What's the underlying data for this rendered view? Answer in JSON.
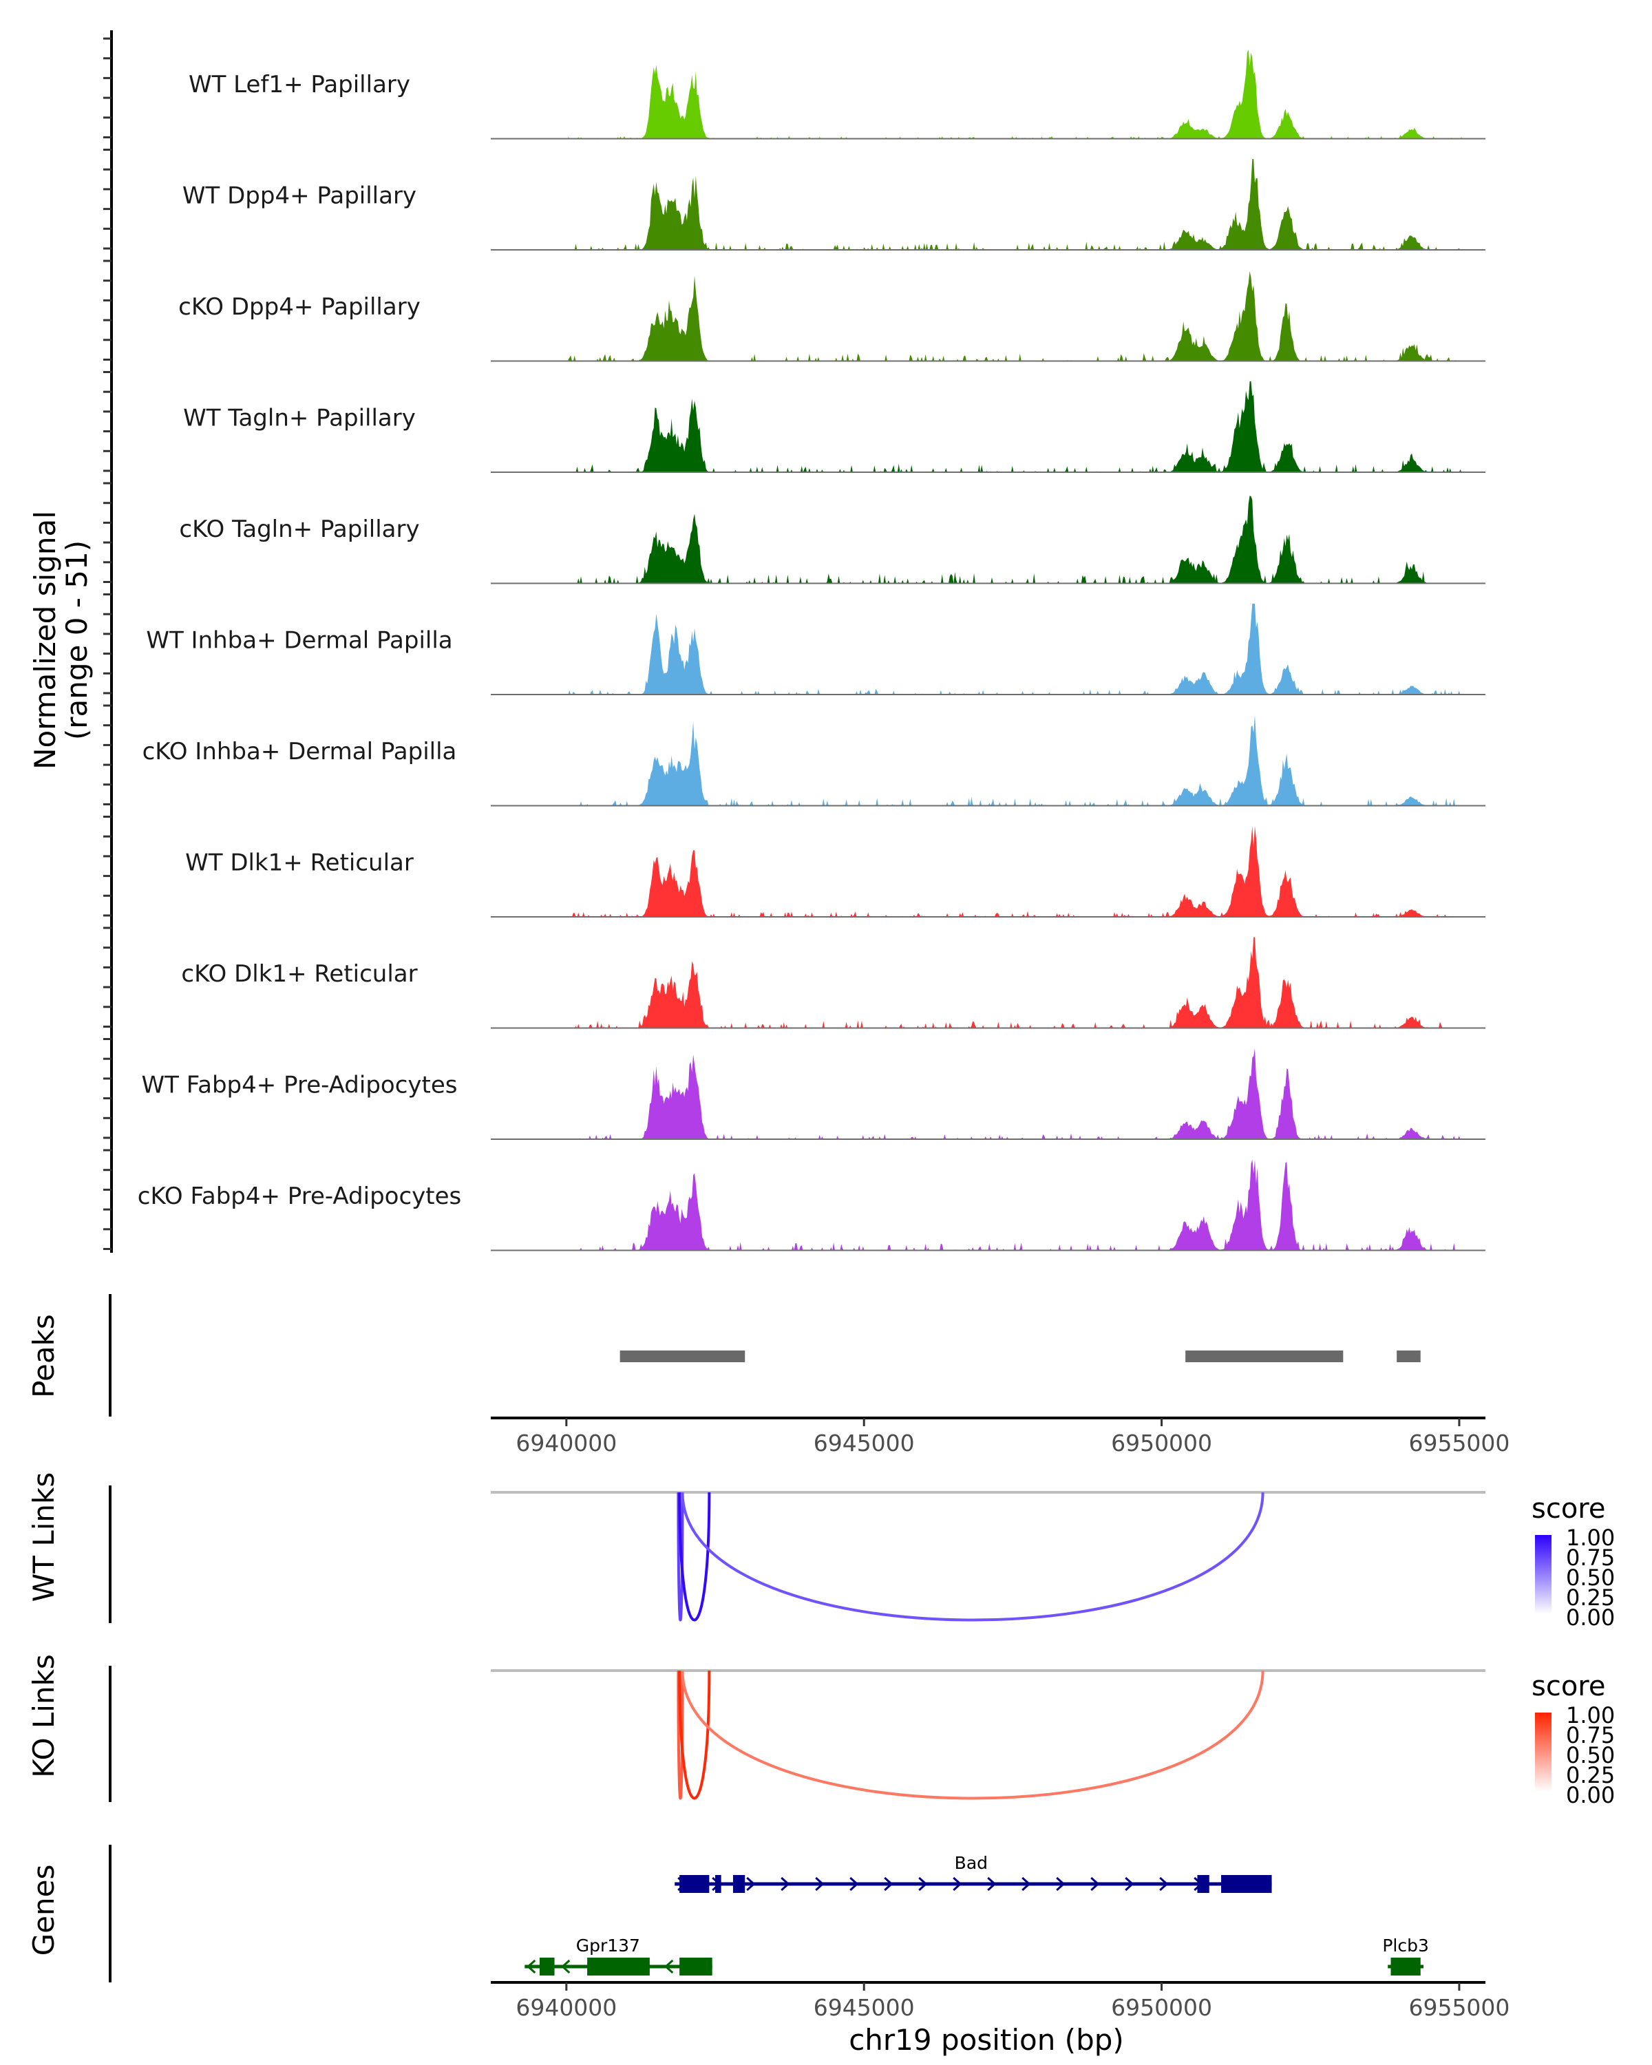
{
  "chart_data": {
    "type": "area",
    "title": "",
    "ylabel_lines": [
      "Normalized signal",
      "(range 0 - 51)"
    ],
    "ylim": [
      0,
      51
    ],
    "xlabel": "chr19 position (bp)",
    "xlim": [
      6938730,
      6955440
    ],
    "x_ticks": [
      6940000,
      6945000,
      6950000,
      6955000
    ],
    "x_tick_labels": [
      "6940000",
      "6945000",
      "6950000",
      "6955000"
    ],
    "coverage_tracks": [
      {
        "name": "WT Lef1+ Papillary",
        "color": "#66cc00",
        "peaks": [
          [
            6941500,
            40
          ],
          [
            6941750,
            29
          ],
          [
            6942150,
            36
          ],
          [
            6941950,
            8
          ],
          [
            6951500,
            51
          ],
          [
            6951300,
            20
          ],
          [
            6952100,
            16
          ],
          [
            6950400,
            10
          ],
          [
            6950700,
            6
          ],
          [
            6954200,
            6
          ]
        ],
        "noise": 1
      },
      {
        "name": "WT Dpp4+ Papillary",
        "color": "#458b00",
        "peaks": [
          [
            6941500,
            38
          ],
          [
            6941750,
            25
          ],
          [
            6941950,
            14
          ],
          [
            6942150,
            36
          ],
          [
            6951550,
            51
          ],
          [
            6951250,
            18
          ],
          [
            6952100,
            24
          ],
          [
            6950400,
            12
          ],
          [
            6950700,
            6
          ],
          [
            6954200,
            8
          ]
        ],
        "noise": 3
      },
      {
        "name": "cKO Dpp4+ Papillary",
        "color": "#458b00",
        "peaks": [
          [
            6941500,
            26
          ],
          [
            6941750,
            26
          ],
          [
            6941950,
            12
          ],
          [
            6942150,
            40
          ],
          [
            6951500,
            45
          ],
          [
            6951300,
            22
          ],
          [
            6952100,
            32
          ],
          [
            6950400,
            20
          ],
          [
            6950700,
            10
          ],
          [
            6954200,
            10
          ]
        ],
        "noise": 3
      },
      {
        "name": "WT Tagln+ Papillary",
        "color": "#006400",
        "peaks": [
          [
            6941500,
            34
          ],
          [
            6941750,
            23
          ],
          [
            6941950,
            10
          ],
          [
            6942150,
            42
          ],
          [
            6951500,
            51
          ],
          [
            6951300,
            30
          ],
          [
            6952100,
            18
          ],
          [
            6950400,
            12
          ],
          [
            6950700,
            10
          ],
          [
            6954200,
            8
          ]
        ],
        "noise": 3
      },
      {
        "name": "cKO Tagln+ Papillary",
        "color": "#006400",
        "peaks": [
          [
            6941500,
            26
          ],
          [
            6941750,
            22
          ],
          [
            6941950,
            10
          ],
          [
            6942150,
            36
          ],
          [
            6951500,
            43
          ],
          [
            6951300,
            24
          ],
          [
            6952100,
            28
          ],
          [
            6950400,
            16
          ],
          [
            6950700,
            12
          ],
          [
            6954200,
            10
          ]
        ],
        "noise": 4
      },
      {
        "name": "WT Inhba+ Dermal Papilla",
        "color": "#5dade2",
        "peaks": [
          [
            6941500,
            40
          ],
          [
            6941800,
            33
          ],
          [
            6941950,
            12
          ],
          [
            6942150,
            34
          ],
          [
            6951550,
            51
          ],
          [
            6951300,
            12
          ],
          [
            6952100,
            16
          ],
          [
            6950400,
            10
          ],
          [
            6950700,
            12
          ],
          [
            6954200,
            5
          ]
        ],
        "noise": 2
      },
      {
        "name": "cKO Inhba+ Dermal Papilla",
        "color": "#5dade2",
        "peaks": [
          [
            6941500,
            26
          ],
          [
            6941750,
            20
          ],
          [
            6941950,
            20
          ],
          [
            6942150,
            37
          ],
          [
            6951550,
            51
          ],
          [
            6951300,
            14
          ],
          [
            6952100,
            26
          ],
          [
            6950400,
            10
          ],
          [
            6950700,
            10
          ],
          [
            6954200,
            5
          ]
        ],
        "noise": 3
      },
      {
        "name": "WT Dlk1+ Reticular",
        "color": "#ff3333",
        "peaks": [
          [
            6941500,
            34
          ],
          [
            6941750,
            26
          ],
          [
            6941950,
            10
          ],
          [
            6942150,
            34
          ],
          [
            6951550,
            51
          ],
          [
            6951300,
            26
          ],
          [
            6952100,
            26
          ],
          [
            6950400,
            12
          ],
          [
            6950700,
            8
          ],
          [
            6954200,
            4
          ]
        ],
        "noise": 2
      },
      {
        "name": "cKO Dlk1+ Reticular",
        "color": "#ff3333",
        "peaks": [
          [
            6941500,
            26
          ],
          [
            6941750,
            26
          ],
          [
            6941950,
            10
          ],
          [
            6942150,
            37
          ],
          [
            6951550,
            51
          ],
          [
            6951300,
            24
          ],
          [
            6952100,
            30
          ],
          [
            6950400,
            16
          ],
          [
            6950700,
            12
          ],
          [
            6954200,
            6
          ]
        ],
        "noise": 3
      },
      {
        "name": "WT Fabp4+ Pre-Adipocytes",
        "color": "#b23ee8",
        "peaks": [
          [
            6941500,
            40
          ],
          [
            6941750,
            26
          ],
          [
            6941950,
            24
          ],
          [
            6942150,
            48
          ],
          [
            6951550,
            51
          ],
          [
            6951300,
            24
          ],
          [
            6952100,
            38
          ],
          [
            6950400,
            10
          ],
          [
            6950700,
            10
          ],
          [
            6954200,
            6
          ]
        ],
        "noise": 2
      },
      {
        "name": "cKO Fabp4+ Pre-Adipocytes",
        "color": "#b23ee8",
        "peaks": [
          [
            6941500,
            26
          ],
          [
            6941750,
            27
          ],
          [
            6941950,
            14
          ],
          [
            6942150,
            40
          ],
          [
            6951550,
            51
          ],
          [
            6951300,
            26
          ],
          [
            6952100,
            46
          ],
          [
            6950400,
            16
          ],
          [
            6950700,
            18
          ],
          [
            6954200,
            12
          ]
        ],
        "noise": 3
      }
    ],
    "peaks_track": {
      "name": "Peaks",
      "color": "#696969",
      "regions": [
        [
          6940900,
          6943000
        ],
        [
          6950400,
          6953050
        ],
        [
          6953950,
          6954350
        ]
      ]
    },
    "links_tracks": [
      {
        "name": "WT Links",
        "legend_title": "score",
        "color_high": "#2b00ff",
        "color_low": "#ffffff",
        "links": [
          {
            "start": 6941880,
            "end": 6941950,
            "score": 0.6
          },
          {
            "start": 6941900,
            "end": 6942400,
            "score": 0.95
          },
          {
            "start": 6941950,
            "end": 6951700,
            "score": 0.5
          }
        ],
        "legend_ticks": [
          "1.00",
          "0.75",
          "0.50",
          "0.25",
          "0.00"
        ]
      },
      {
        "name": "KO Links",
        "legend_title": "score",
        "color_high": "#ff2200",
        "color_low": "#ffffff",
        "links": [
          {
            "start": 6941880,
            "end": 6941950,
            "score": 0.6
          },
          {
            "start": 6941900,
            "end": 6942400,
            "score": 0.95
          },
          {
            "start": 6941950,
            "end": 6951700,
            "score": 0.4
          }
        ],
        "legend_ticks": [
          "1.00",
          "0.75",
          "0.50",
          "0.25",
          "0.00"
        ]
      }
    ],
    "genes_track": {
      "name": "Genes",
      "genes": [
        {
          "symbol": "Bad",
          "strand": "+",
          "color": "#00008b",
          "row": 0,
          "start": 6941820,
          "end": 6951850,
          "exons": [
            [
              6941900,
              6942400
            ],
            [
              6942500,
              6942600
            ],
            [
              6942800,
              6943000
            ],
            [
              6950600,
              6950800
            ],
            [
              6951000,
              6951850
            ]
          ]
        },
        {
          "symbol": "Gpr137",
          "strand": "-",
          "color": "#006400",
          "row": 1,
          "start": 6939300,
          "end": 6942450,
          "exons": [
            [
              6939550,
              6939800
            ],
            [
              6940350,
              6941400
            ],
            [
              6941900,
              6942450
            ]
          ]
        },
        {
          "symbol": "Plcb3",
          "strand": "-",
          "color": "#006400",
          "row": 1,
          "start": 6953800,
          "end": 6954400,
          "exons": [
            [
              6953850,
              6954350
            ]
          ]
        }
      ]
    },
    "legend_placement": "right"
  }
}
